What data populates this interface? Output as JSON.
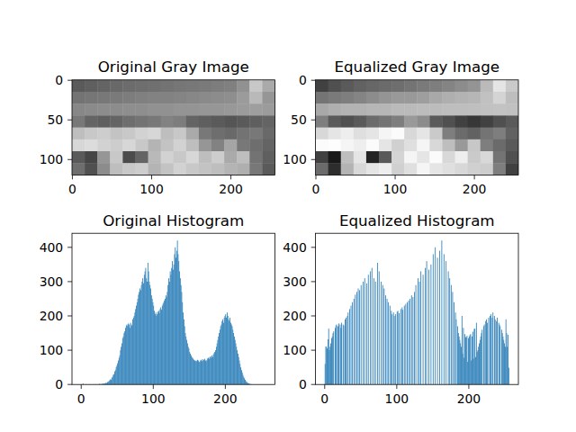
{
  "chart_data": [
    {
      "type": "image",
      "title": "Original Gray Image",
      "color": "gray",
      "xlim": [
        -0.5,
        255.5
      ],
      "ylim": [
        119.5,
        -0.5
      ],
      "xticks": [
        0,
        100,
        200
      ],
      "yticks": [
        0,
        50,
        100
      ],
      "cells": [
        [
          90,
          95,
          100,
          105,
          108,
          110,
          112,
          115,
          118,
          120,
          122,
          125,
          128,
          145,
          200,
          170
        ],
        [
          115,
          118,
          120,
          122,
          125,
          128,
          130,
          130,
          132,
          135,
          138,
          140,
          142,
          155,
          185,
          150
        ],
        [
          135,
          138,
          140,
          140,
          142,
          142,
          145,
          145,
          148,
          148,
          150,
          150,
          152,
          155,
          158,
          155
        ],
        [
          120,
          100,
          95,
          100,
          110,
          115,
          120,
          130,
          125,
          100,
          95,
          90,
          85,
          90,
          95,
          100
        ],
        [
          190,
          200,
          205,
          195,
          200,
          210,
          215,
          190,
          200,
          170,
          120,
          110,
          105,
          115,
          120,
          105
        ],
        [
          215,
          220,
          210,
          205,
          215,
          200,
          180,
          195,
          210,
          190,
          150,
          130,
          165,
          120,
          110,
          100
        ],
        [
          90,
          70,
          150,
          200,
          75,
          100,
          185,
          210,
          200,
          215,
          190,
          205,
          170,
          190,
          115,
          95
        ],
        [
          110,
          80,
          140,
          190,
          200,
          205,
          180,
          195,
          210,
          200,
          195,
          190,
          180,
          175,
          120,
          90
        ]
      ]
    },
    {
      "type": "image",
      "title": "Equalized Gray Image",
      "color": "gray",
      "xlim": [
        -0.5,
        255.5
      ],
      "ylim": [
        119.5,
        -0.5
      ],
      "xticks": [
        0,
        100,
        200
      ],
      "yticks": [
        0,
        50,
        100
      ],
      "cells": [
        [
          65,
          80,
          90,
          98,
          103,
          107,
          110,
          116,
          122,
          126,
          132,
          140,
          148,
          186,
          229,
          202
        ],
        [
          116,
          122,
          126,
          132,
          140,
          148,
          153,
          153,
          158,
          168,
          175,
          179,
          182,
          193,
          212,
          190
        ],
        [
          168,
          175,
          179,
          179,
          182,
          182,
          186,
          186,
          188,
          188,
          190,
          190,
          191,
          193,
          195,
          193
        ],
        [
          126,
          90,
          80,
          90,
          107,
          116,
          126,
          153,
          140,
          90,
          80,
          65,
          55,
          65,
          80,
          90
        ],
        [
          216,
          229,
          238,
          223,
          229,
          245,
          251,
          216,
          229,
          202,
          126,
          107,
          98,
          116,
          126,
          98
        ],
        [
          251,
          253,
          245,
          238,
          251,
          229,
          208,
          223,
          245,
          216,
          190,
          153,
          199,
          126,
          107,
          90
        ],
        [
          65,
          25,
          190,
          229,
          35,
          90,
          212,
          245,
          229,
          251,
          216,
          238,
          202,
          216,
          116,
          80
        ],
        [
          107,
          45,
          179,
          216,
          229,
          238,
          208,
          223,
          245,
          229,
          223,
          216,
          208,
          205,
          126,
          65
        ]
      ]
    },
    {
      "type": "histogram",
      "title": "Original Histogram",
      "color": "#1f77b4",
      "xlim": [
        -12.8,
        268.8
      ],
      "ylim": [
        0,
        441
      ],
      "xticks": [
        0,
        100,
        200
      ],
      "yticks": [
        0,
        100,
        200,
        300,
        400
      ],
      "bins": [
        0,
        1,
        2,
        3,
        4,
        5,
        6,
        7,
        8,
        9,
        10,
        11,
        12,
        13,
        14,
        15,
        16,
        17,
        18,
        19,
        20,
        21,
        22,
        23,
        24,
        25,
        26,
        27,
        28,
        29,
        30,
        31,
        32,
        33,
        34,
        35,
        36,
        37,
        38,
        39,
        40,
        41,
        42,
        43,
        44,
        45,
        46,
        47,
        48,
        49,
        50,
        51,
        52,
        53,
        54,
        55,
        56,
        57,
        58,
        59,
        60,
        61,
        62,
        63,
        64,
        65,
        66,
        67,
        68,
        69,
        70,
        71,
        72,
        73,
        74,
        75,
        76,
        77,
        78,
        79,
        80,
        81,
        82,
        83,
        84,
        85,
        86,
        87,
        88,
        89,
        90,
        91,
        92,
        93,
        94,
        95,
        96,
        97,
        98,
        99,
        100,
        101,
        102,
        103,
        104,
        105,
        106,
        107,
        108,
        109,
        110,
        111,
        112,
        113,
        114,
        115,
        116,
        117,
        118,
        119,
        120,
        121,
        122,
        123,
        124,
        125,
        126,
        127,
        128,
        129,
        130,
        131,
        132,
        133,
        134,
        135,
        136,
        137,
        138,
        139,
        140,
        141,
        142,
        143,
        144,
        145,
        146,
        147,
        148,
        149,
        150,
        151,
        152,
        153,
        154,
        155,
        156,
        157,
        158,
        159,
        160,
        161,
        162,
        163,
        164,
        165,
        166,
        167,
        168,
        169,
        170,
        171,
        172,
        173,
        174,
        175,
        176,
        177,
        178,
        179,
        180,
        181,
        182,
        183,
        184,
        185,
        186,
        187,
        188,
        189,
        190,
        191,
        192,
        193,
        194,
        195,
        196,
        197,
        198,
        199,
        200,
        201,
        202,
        203,
        204,
        205,
        206,
        207,
        208,
        209,
        210,
        211,
        212,
        213,
        214,
        215,
        216,
        217,
        218,
        219,
        220,
        221,
        222,
        223,
        224,
        225,
        226,
        227,
        228,
        229,
        230,
        231,
        232,
        233,
        234,
        235,
        236,
        237,
        238,
        239,
        240,
        241,
        242,
        243,
        244,
        245,
        246,
        247,
        248,
        249,
        250,
        251,
        252,
        253,
        254,
        255,
        256
      ],
      "values": [
        0,
        0,
        3,
        0,
        0,
        0,
        1,
        0,
        0,
        0,
        0,
        1,
        0,
        0,
        0,
        0,
        0,
        1,
        0,
        0,
        1,
        0,
        0,
        1,
        0,
        2,
        1,
        0,
        2,
        1,
        3,
        2,
        3,
        4,
        5,
        4,
        7,
        8,
        10,
        12,
        15,
        14,
        20,
        22,
        28,
        30,
        38,
        42,
        50,
        55,
        62,
        70,
        78,
        85,
        100,
        110,
        120,
        135,
        140,
        150,
        155,
        165,
        172,
        175,
        170,
        178,
        175,
        165,
        180,
        175,
        172,
        190,
        195,
        200,
        210,
        220,
        230,
        240,
        250,
        262,
        270,
        280,
        275,
        290,
        300,
        310,
        295,
        320,
        330,
        340,
        310,
        300,
        355,
        330,
        300,
        290,
        280,
        260,
        250,
        240,
        230,
        215,
        205,
        210,
        200,
        205,
        212,
        215,
        208,
        220,
        225,
        218,
        230,
        235,
        240,
        245,
        250,
        260,
        255,
        270,
        290,
        310,
        300,
        330,
        320,
        340,
        360,
        335,
        350,
        380,
        400,
        370,
        390,
        420,
        380,
        360,
        330,
        310,
        290,
        270,
        240,
        210,
        190,
        170,
        150,
        140,
        130,
        120,
        110,
        105,
        95,
        90,
        85,
        80,
        78,
        75,
        72,
        70,
        68,
        70,
        68,
        72,
        70,
        66,
        65,
        70,
        72,
        68,
        74,
        70,
        72,
        75,
        70,
        68,
        72,
        76,
        78,
        75,
        80,
        82,
        78,
        85,
        80,
        88,
        92,
        95,
        100,
        110,
        120,
        130,
        140,
        150,
        160,
        170,
        175,
        185,
        190,
        180,
        195,
        200,
        205,
        195,
        210,
        200,
        190,
        185,
        195,
        180,
        175,
        170,
        160,
        150,
        140,
        130,
        120,
        110,
        100,
        90,
        80,
        70,
        60,
        50,
        42,
        35,
        28,
        22,
        18,
        14,
        10,
        8,
        6,
        4,
        3,
        2,
        1,
        1,
        0,
        0,
        0,
        0,
        0,
        0,
        0,
        0,
        0,
        0,
        0,
        0,
        0,
        0,
        0,
        0,
        0,
        0,
        0,
        0
      ]
    },
    {
      "type": "histogram",
      "title": "Equalized Histogram",
      "color": "#1f77b4",
      "xlim": [
        -12.8,
        268.8
      ],
      "ylim": [
        0,
        441
      ],
      "xticks": [
        0,
        100,
        200
      ],
      "yticks": [
        0,
        100,
        200,
        300,
        400
      ],
      "bins": [
        0,
        1,
        2,
        3,
        4,
        5,
        6,
        7,
        8,
        9,
        10,
        11,
        12,
        13,
        14,
        15,
        16,
        17,
        18,
        19,
        20,
        21,
        22,
        23,
        24,
        25,
        26,
        27,
        28,
        29,
        30,
        31,
        32,
        33,
        34,
        35,
        36,
        37,
        38,
        39,
        40,
        41,
        42,
        43,
        44,
        45,
        46,
        47,
        48,
        49,
        50,
        51,
        52,
        53,
        54,
        55,
        56,
        57,
        58,
        59,
        60,
        61,
        62,
        63,
        64,
        65,
        66,
        67,
        68,
        69,
        70,
        71,
        72,
        73,
        74,
        75,
        76,
        77,
        78,
        79,
        80,
        81,
        82,
        83,
        84,
        85,
        86,
        87,
        88,
        89,
        90,
        91,
        92,
        93,
        94,
        95,
        96,
        97,
        98,
        99,
        100,
        101,
        102,
        103,
        104,
        105,
        106,
        107,
        108,
        109,
        110,
        111,
        112,
        113,
        114,
        115,
        116,
        117,
        118,
        119,
        120,
        121,
        122,
        123,
        124,
        125,
        126,
        127,
        128,
        129,
        130,
        131,
        132,
        133,
        134,
        135,
        136,
        137,
        138,
        139,
        140,
        141,
        142,
        143,
        144,
        145,
        146,
        147,
        148,
        149,
        150,
        151,
        152,
        153,
        154,
        155,
        156,
        157,
        158,
        159,
        160,
        161,
        162,
        163,
        164,
        165,
        166,
        167,
        168,
        169,
        170,
        171,
        172,
        173,
        174,
        175,
        176,
        177,
        178,
        179,
        180,
        181,
        182,
        183,
        184,
        185,
        186,
        187,
        188,
        189,
        190,
        191,
        192,
        193,
        194,
        195,
        196,
        197,
        198,
        199,
        200,
        201,
        202,
        203,
        204,
        205,
        206,
        207,
        208,
        209,
        210,
        211,
        212,
        213,
        214,
        215,
        216,
        217,
        218,
        219,
        220,
        221,
        222,
        223,
        224,
        225,
        226,
        227,
        228,
        229,
        230,
        231,
        232,
        233,
        234,
        235,
        236,
        237,
        238,
        239,
        240,
        241,
        242,
        243,
        244,
        245,
        246,
        247,
        248,
        249,
        250,
        251,
        252,
        253,
        254,
        255,
        256
      ],
      "values": [
        60,
        111,
        110,
        105,
        132,
        163,
        100,
        110,
        120,
        135,
        140,
        150,
        155,
        0,
        165,
        172,
        175,
        0,
        170,
        178,
        0,
        175,
        165,
        180,
        0,
        175,
        172,
        0,
        190,
        195,
        0,
        200,
        210,
        0,
        220,
        0,
        230,
        0,
        240,
        0,
        250,
        0,
        262,
        0,
        270,
        0,
        280,
        0,
        275,
        0,
        290,
        0,
        0,
        300,
        0,
        310,
        0,
        0,
        295,
        0,
        320,
        0,
        0,
        330,
        0,
        340,
        0,
        0,
        310,
        0,
        300,
        0,
        0,
        355,
        0,
        330,
        0,
        0,
        300,
        0,
        290,
        0,
        280,
        0,
        260,
        0,
        250,
        0,
        240,
        0,
        230,
        0,
        215,
        205,
        0,
        210,
        200,
        0,
        205,
        0,
        212,
        215,
        0,
        208,
        0,
        220,
        0,
        225,
        218,
        0,
        230,
        0,
        235,
        0,
        240,
        0,
        245,
        0,
        250,
        0,
        260,
        0,
        255,
        0,
        270,
        0,
        290,
        0,
        0,
        310,
        0,
        300,
        0,
        330,
        0,
        0,
        320,
        0,
        0,
        340,
        0,
        360,
        0,
        0,
        335,
        0,
        0,
        350,
        0,
        0,
        380,
        0,
        0,
        400,
        0,
        0,
        370,
        0,
        0,
        390,
        0,
        0,
        420,
        0,
        0,
        380,
        0,
        0,
        360,
        0,
        0,
        330,
        0,
        310,
        0,
        290,
        0,
        270,
        0,
        240,
        0,
        210,
        190,
        0,
        170,
        150,
        140,
        130,
        120,
        110,
        200,
        90,
        165,
        78,
        147,
        138,
        138,
        142,
        66,
        135,
        140,
        144,
        147,
        70,
        140,
        154,
        75,
        162,
        163,
        80,
        180,
        95,
        100,
        110,
        120,
        130,
        140,
        150,
        160,
        0,
        170,
        175,
        0,
        185,
        190,
        180,
        0,
        195,
        0,
        200,
        205,
        0,
        195,
        210,
        0,
        200,
        190,
        0,
        185,
        195,
        0,
        180,
        175,
        170,
        0,
        160,
        150,
        140,
        130,
        120,
        110,
        190,
        150,
        110,
        145,
        49
      ]
    }
  ]
}
